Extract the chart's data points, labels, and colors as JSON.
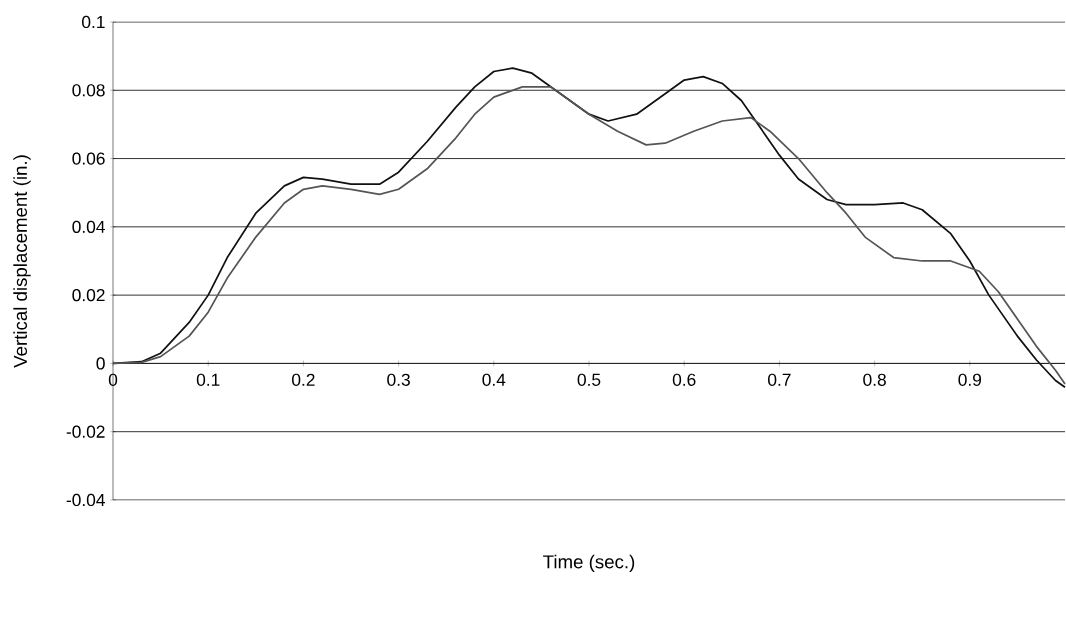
{
  "chart_data": {
    "type": "line",
    "xlabel": "Time (sec.)",
    "ylabel": "Vertical displacement (in.)",
    "xlim": [
      0,
      1
    ],
    "ylim": [
      -0.04,
      0.1
    ],
    "xticks": [
      0,
      0.1,
      0.2,
      0.3,
      0.4,
      0.5,
      0.6,
      0.7,
      0.8,
      0.9
    ],
    "yticks": [
      -0.04,
      -0.02,
      0,
      0.02,
      0.04,
      0.06,
      0.08,
      0.1
    ],
    "grid": "y",
    "series": [
      {
        "color": "#111111",
        "x": [
          0,
          0.03,
          0.05,
          0.08,
          0.1,
          0.12,
          0.15,
          0.18,
          0.2,
          0.22,
          0.25,
          0.28,
          0.3,
          0.33,
          0.36,
          0.38,
          0.4,
          0.42,
          0.44,
          0.47,
          0.5,
          0.52,
          0.55,
          0.58,
          0.6,
          0.62,
          0.64,
          0.66,
          0.68,
          0.7,
          0.72,
          0.75,
          0.77,
          0.8,
          0.83,
          0.85,
          0.88,
          0.9,
          0.92,
          0.95,
          0.97,
          0.99,
          1.0
        ],
        "values": [
          0,
          0.0005,
          0.003,
          0.012,
          0.02,
          0.031,
          0.044,
          0.052,
          0.0545,
          0.054,
          0.0525,
          0.0525,
          0.056,
          0.065,
          0.075,
          0.081,
          0.0855,
          0.0865,
          0.085,
          0.079,
          0.073,
          0.071,
          0.073,
          0.079,
          0.083,
          0.084,
          0.082,
          0.077,
          0.069,
          0.061,
          0.054,
          0.048,
          0.0465,
          0.0465,
          0.047,
          0.045,
          0.038,
          0.03,
          0.02,
          0.008,
          0.001,
          -0.005,
          -0.007
        ]
      },
      {
        "color": "#555555",
        "x": [
          0,
          0.03,
          0.05,
          0.08,
          0.1,
          0.12,
          0.15,
          0.18,
          0.2,
          0.22,
          0.25,
          0.28,
          0.3,
          0.33,
          0.36,
          0.38,
          0.4,
          0.43,
          0.46,
          0.5,
          0.53,
          0.56,
          0.58,
          0.61,
          0.64,
          0.67,
          0.69,
          0.72,
          0.75,
          0.77,
          0.79,
          0.82,
          0.85,
          0.88,
          0.91,
          0.93,
          0.95,
          0.97,
          0.99,
          1.0
        ],
        "values": [
          0,
          0.0003,
          0.002,
          0.008,
          0.015,
          0.025,
          0.037,
          0.047,
          0.051,
          0.052,
          0.051,
          0.0495,
          0.051,
          0.057,
          0.066,
          0.073,
          0.078,
          0.081,
          0.081,
          0.073,
          0.068,
          0.064,
          0.0645,
          0.068,
          0.071,
          0.072,
          0.068,
          0.06,
          0.05,
          0.044,
          0.037,
          0.031,
          0.03,
          0.03,
          0.027,
          0.021,
          0.013,
          0.005,
          -0.002,
          -0.006
        ]
      }
    ]
  }
}
